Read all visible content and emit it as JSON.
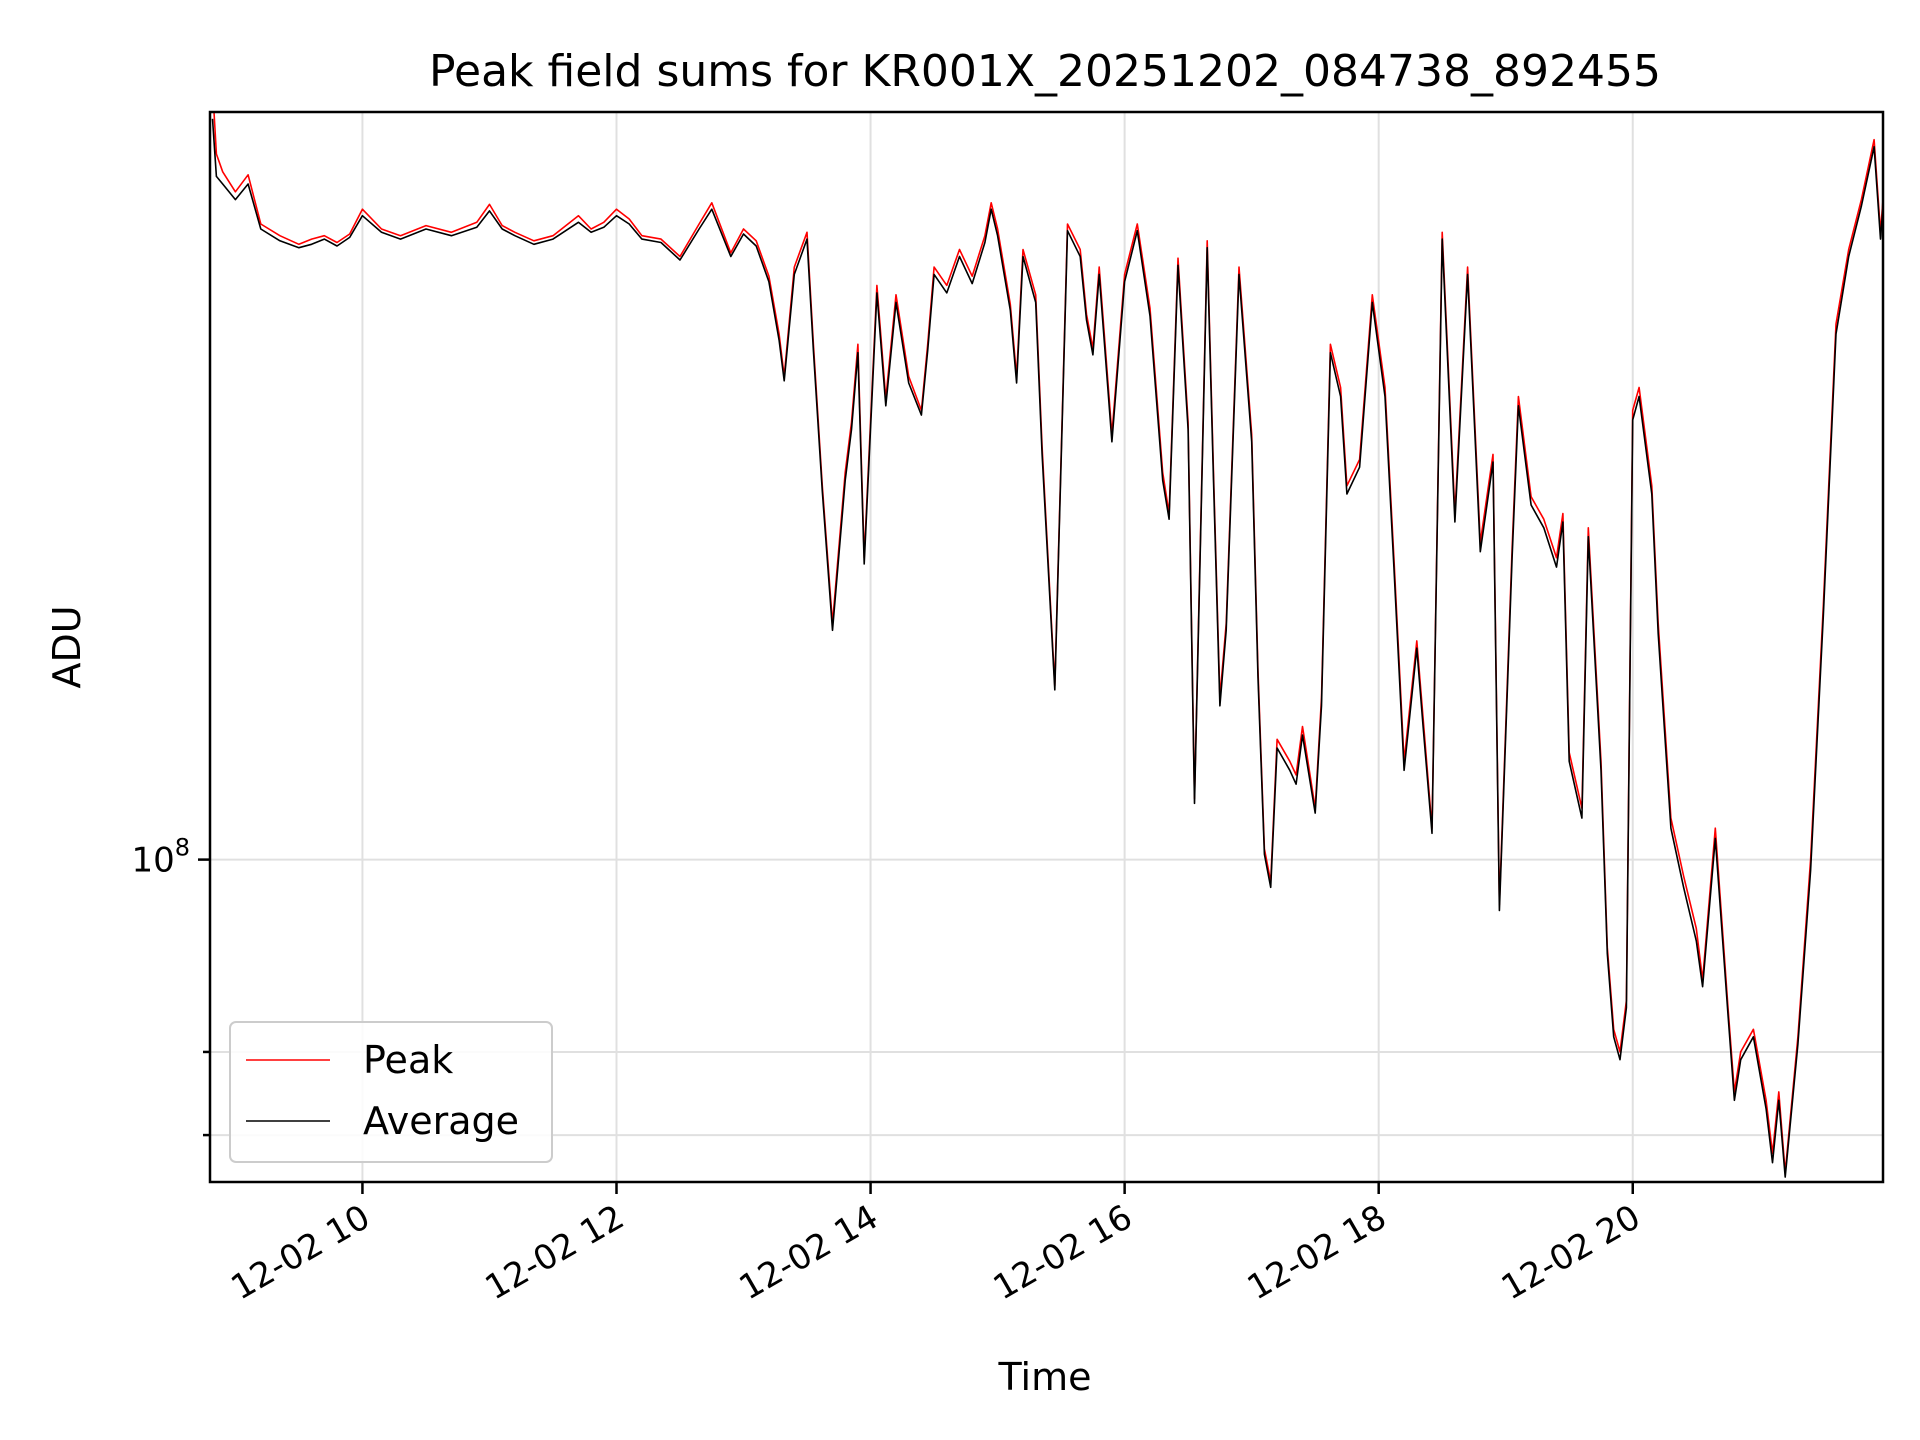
{
  "chart_data": {
    "type": "line",
    "title": "Peak field sums for KR001X_20251202_084738_892455",
    "xlabel": "Time",
    "ylabel": "ADU",
    "yscale": "log",
    "xlim_hours": [
      8.8,
      21.97
    ],
    "ylim": [
      55000000,
      400000000
    ],
    "x_ticks": [
      {
        "hour": 10,
        "label": "12-02 10"
      },
      {
        "hour": 12,
        "label": "12-02 12"
      },
      {
        "hour": 14,
        "label": "12-02 14"
      },
      {
        "hour": 16,
        "label": "12-02 16"
      },
      {
        "hour": 18,
        "label": "12-02 18"
      },
      {
        "hour": 20,
        "label": "12-02 20"
      }
    ],
    "y_major_ticks": [
      {
        "value": 100000000,
        "base": "10",
        "exp": "8"
      }
    ],
    "y_minor_ticks": [
      60000000,
      70000000
    ],
    "grid": true,
    "legend_position": "lower-left",
    "series": [
      {
        "name": "Peak",
        "color": "#ff0000",
        "x_hours": [
          8.82,
          8.85,
          8.9,
          9.0,
          9.1,
          9.2,
          9.35,
          9.5,
          9.6,
          9.7,
          9.8,
          9.9,
          10.0,
          10.15,
          10.3,
          10.5,
          10.7,
          10.9,
          11.0,
          11.1,
          11.2,
          11.35,
          11.5,
          11.7,
          11.8,
          11.9,
          12.0,
          12.1,
          12.2,
          12.35,
          12.5,
          12.65,
          12.75,
          12.9,
          13.0,
          13.1,
          13.2,
          13.28,
          13.32,
          13.4,
          13.5,
          13.55,
          13.62,
          13.7,
          13.8,
          13.85,
          13.9,
          13.95,
          14.05,
          14.12,
          14.2,
          14.3,
          14.4,
          14.45,
          14.5,
          14.6,
          14.7,
          14.8,
          14.9,
          14.95,
          15.0,
          15.1,
          15.15,
          15.2,
          15.3,
          15.35,
          15.45,
          15.55,
          15.65,
          15.7,
          15.75,
          15.8,
          15.9,
          16.0,
          16.1,
          16.2,
          16.3,
          16.35,
          16.42,
          16.5,
          16.55,
          16.65,
          16.7,
          16.75,
          16.8,
          16.9,
          17.0,
          17.05,
          17.1,
          17.15,
          17.2,
          17.3,
          17.35,
          17.4,
          17.5,
          17.55,
          17.62,
          17.7,
          17.75,
          17.85,
          17.95,
          18.05,
          18.12,
          18.2,
          18.3,
          18.35,
          18.42,
          18.5,
          18.6,
          18.7,
          18.8,
          18.9,
          18.95,
          19.05,
          19.1,
          19.2,
          19.3,
          19.4,
          19.45,
          19.5,
          19.6,
          19.65,
          19.75,
          19.8,
          19.85,
          19.9,
          19.95,
          20.0,
          20.05,
          20.15,
          20.2,
          20.3,
          20.4,
          20.5,
          20.55,
          20.65,
          20.75,
          20.8,
          20.85,
          20.95,
          21.05,
          21.1,
          21.15,
          21.2,
          21.3,
          21.4,
          21.5,
          21.6,
          21.7,
          21.8,
          21.9,
          21.95,
          21.97
        ],
        "values": [
          420000000,
          370000000,
          358000000,
          345000000,
          356000000,
          325000000,
          318000000,
          313000000,
          316000000,
          318000000,
          314000000,
          319000000,
          334000000,
          322000000,
          318000000,
          324000000,
          320000000,
          326000000,
          337000000,
          324000000,
          320000000,
          315000000,
          318000000,
          330000000,
          322000000,
          326000000,
          334000000,
          328000000,
          318000000,
          316000000,
          306000000,
          325000000,
          338000000,
          308000000,
          322000000,
          315000000,
          295000000,
          265000000,
          245000000,
          300000000,
          320000000,
          260000000,
          200000000,
          155000000,
          205000000,
          225000000,
          260000000,
          175000000,
          290000000,
          235000000,
          285000000,
          245000000,
          230000000,
          260000000,
          300000000,
          290000000,
          310000000,
          295000000,
          318000000,
          338000000,
          322000000,
          280000000,
          245000000,
          310000000,
          285000000,
          215000000,
          138000000,
          325000000,
          310000000,
          275000000,
          258000000,
          300000000,
          220000000,
          296000000,
          325000000,
          278000000,
          205000000,
          190000000,
          305000000,
          225000000,
          112000000,
          315000000,
          205000000,
          135000000,
          155000000,
          300000000,
          220000000,
          142000000,
          102000000,
          96000000,
          125000000,
          120000000,
          117000000,
          128000000,
          110000000,
          135000000,
          260000000,
          240000000,
          200000000,
          210000000,
          285000000,
          240000000,
          175000000,
          120000000,
          150000000,
          130000000,
          106000000,
          320000000,
          190000000,
          300000000,
          180000000,
          212000000,
          92000000,
          178000000,
          236000000,
          196000000,
          188000000,
          175000000,
          190000000,
          122000000,
          110000000,
          185000000,
          120000000,
          85000000,
          73000000,
          70000000,
          77000000,
          230000000,
          240000000,
          200000000,
          155000000,
          108000000,
          97000000,
          88000000,
          80000000,
          106000000,
          76000000,
          65000000,
          70000000,
          73000000,
          64000000,
          58000000,
          65000000,
          56000000,
          72000000,
          100000000,
          160000000,
          270000000,
          310000000,
          340000000,
          380000000,
          320000000,
          340000000
        ]
      },
      {
        "name": "Average",
        "color": "#000000",
        "x_hours": [
          8.82,
          8.85,
          8.9,
          9.0,
          9.1,
          9.2,
          9.35,
          9.5,
          9.6,
          9.7,
          9.8,
          9.9,
          10.0,
          10.15,
          10.3,
          10.5,
          10.7,
          10.9,
          11.0,
          11.1,
          11.2,
          11.35,
          11.5,
          11.7,
          11.8,
          11.9,
          12.0,
          12.1,
          12.2,
          12.35,
          12.5,
          12.65,
          12.75,
          12.9,
          13.0,
          13.1,
          13.2,
          13.28,
          13.32,
          13.4,
          13.5,
          13.55,
          13.62,
          13.7,
          13.8,
          13.85,
          13.9,
          13.95,
          14.05,
          14.12,
          14.2,
          14.3,
          14.4,
          14.45,
          14.5,
          14.6,
          14.7,
          14.8,
          14.9,
          14.95,
          15.0,
          15.1,
          15.15,
          15.2,
          15.3,
          15.35,
          15.45,
          15.55,
          15.65,
          15.7,
          15.75,
          15.8,
          15.9,
          16.0,
          16.1,
          16.2,
          16.3,
          16.35,
          16.42,
          16.5,
          16.55,
          16.65,
          16.7,
          16.75,
          16.8,
          16.9,
          17.0,
          17.05,
          17.1,
          17.15,
          17.2,
          17.3,
          17.35,
          17.4,
          17.5,
          17.55,
          17.62,
          17.7,
          17.75,
          17.85,
          17.95,
          18.05,
          18.12,
          18.2,
          18.3,
          18.35,
          18.42,
          18.5,
          18.6,
          18.7,
          18.8,
          18.9,
          18.95,
          19.05,
          19.1,
          19.2,
          19.3,
          19.4,
          19.45,
          19.5,
          19.6,
          19.65,
          19.75,
          19.8,
          19.85,
          19.9,
          19.95,
          20.0,
          20.05,
          20.15,
          20.2,
          20.3,
          20.4,
          20.5,
          20.55,
          20.65,
          20.75,
          20.8,
          20.85,
          20.95,
          21.05,
          21.1,
          21.15,
          21.2,
          21.3,
          21.4,
          21.5,
          21.6,
          21.7,
          21.8,
          21.9,
          21.95,
          21.97
        ],
        "values": [
          395000000,
          355000000,
          350000000,
          340000000,
          350000000,
          322000000,
          315000000,
          311000000,
          313000000,
          316000000,
          312000000,
          317000000,
          330000000,
          320000000,
          316000000,
          322000000,
          318000000,
          323000000,
          333000000,
          322000000,
          318000000,
          313000000,
          316000000,
          326000000,
          320000000,
          323000000,
          330000000,
          325000000,
          316000000,
          314000000,
          304000000,
          322000000,
          334000000,
          306000000,
          319000000,
          312000000,
          292000000,
          262000000,
          243000000,
          296000000,
          316000000,
          257000000,
          198000000,
          153000000,
          202000000,
          222000000,
          256000000,
          173000000,
          286000000,
          232000000,
          281000000,
          242000000,
          228000000,
          257000000,
          296000000,
          286000000,
          306000000,
          291000000,
          314000000,
          334000000,
          318000000,
          277000000,
          242000000,
          306000000,
          281000000,
          212000000,
          137000000,
          321000000,
          306000000,
          272000000,
          255000000,
          296000000,
          217000000,
          292000000,
          321000000,
          274000000,
          202000000,
          188000000,
          301000000,
          222000000,
          111000000,
          311000000,
          202000000,
          133000000,
          153000000,
          296000000,
          217000000,
          140000000,
          101000000,
          95000000,
          123000000,
          118000000,
          115000000,
          126000000,
          109000000,
          133000000,
          256000000,
          236000000,
          197000000,
          207000000,
          281000000,
          236000000,
          172000000,
          118000000,
          148000000,
          128000000,
          105000000,
          316000000,
          187000000,
          296000000,
          177000000,
          209000000,
          91000000,
          175000000,
          232000000,
          193000000,
          185000000,
          172000000,
          187000000,
          120000000,
          108000000,
          182000000,
          118000000,
          84000000,
          72000000,
          69000000,
          76000000,
          226000000,
          236000000,
          197000000,
          152000000,
          106000000,
          95000000,
          86000000,
          79000000,
          104000000,
          75000000,
          64000000,
          69000000,
          72000000,
          63000000,
          57000000,
          64000000,
          55500000,
          71000000,
          98000000,
          157000000,
          265000000,
          306000000,
          336000000,
          375000000,
          316000000,
          336000000
        ]
      }
    ]
  }
}
